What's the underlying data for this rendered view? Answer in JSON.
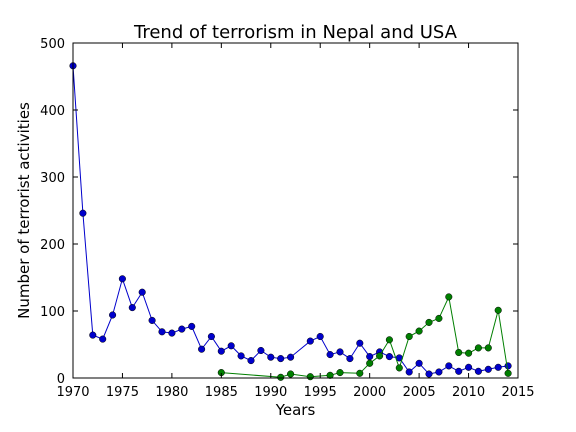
{
  "chart_data": {
    "type": "line",
    "title": "Trend of terrorism in Nepal and USA",
    "xlabel": "Years",
    "ylabel": "Number of terrorist activities",
    "xlim": [
      1970,
      2015
    ],
    "ylim": [
      0,
      500
    ],
    "xticks": [
      "1970",
      "1975",
      "1980",
      "1985",
      "1990",
      "1995",
      "2000",
      "2005",
      "2010",
      "2015"
    ],
    "yticks": [
      "0",
      "100",
      "200",
      "300",
      "400",
      "500"
    ],
    "grid": false,
    "colors": [
      "#0000cc",
      "#007f00"
    ],
    "series": [
      {
        "x": [
          1970,
          1971,
          1972,
          1973,
          1974,
          1975,
          1976,
          1977,
          1978,
          1979,
          1980,
          1981,
          1982,
          1983,
          1984,
          1985,
          1986,
          1987,
          1988,
          1989,
          1990,
          1991,
          1992,
          1994,
          1995,
          1996,
          1997,
          1998,
          1999,
          2000,
          2001,
          2002,
          2003,
          2004,
          2005,
          2006,
          2007,
          2008,
          2009,
          2010,
          2011,
          2012,
          2013,
          2014
        ],
        "values": [
          466,
          246,
          64,
          58,
          94,
          148,
          105,
          128,
          86,
          69,
          67,
          73,
          77,
          43,
          62,
          40,
          48,
          33,
          26,
          41,
          31,
          29,
          31,
          55,
          62,
          35,
          39,
          29,
          52,
          32,
          39,
          32,
          30,
          9,
          22,
          6,
          9,
          18,
          10,
          16,
          10,
          13,
          16,
          18
        ]
      },
      {
        "x": [
          1985,
          1991,
          1992,
          1994,
          1996,
          1997,
          1999,
          2000,
          2001,
          2002,
          2003,
          2004,
          2005,
          2006,
          2007,
          2008,
          2009,
          2010,
          2011,
          2012,
          2013,
          2014
        ],
        "values": [
          8,
          1,
          6,
          2,
          4,
          8,
          7,
          22,
          33,
          57,
          15,
          62,
          70,
          83,
          89,
          121,
          38,
          37,
          45,
          45,
          101,
          7
        ]
      }
    ]
  }
}
